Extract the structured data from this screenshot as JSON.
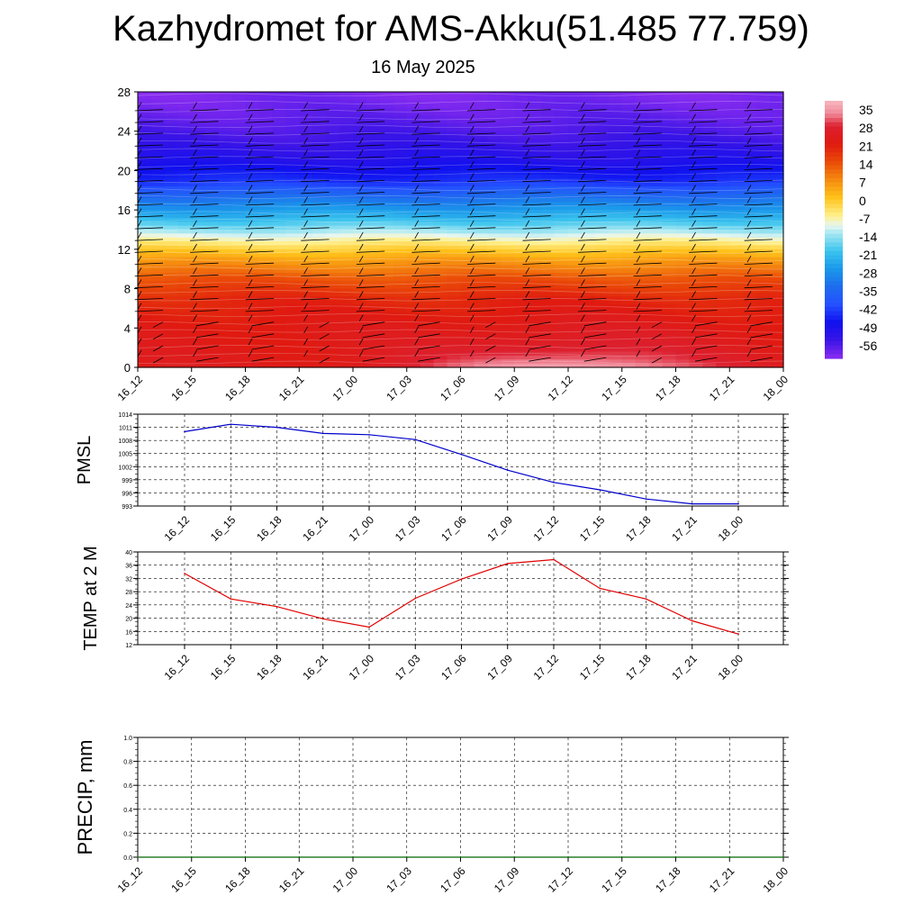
{
  "title": "Kazhydromet for AMS-Akku(51.485 77.759)",
  "subtitle": "16 May 2025",
  "colors": {
    "pmsl_line": "#0000cc",
    "temp_line": "#e00000",
    "precip_line": "#006400",
    "grid": "#000000",
    "barb": "#000000"
  },
  "chart_data": [
    {
      "type": "heatmap",
      "panel": "vertical-profile",
      "x": [
        "16_12",
        "16_15",
        "16_18",
        "16_21",
        "17_00",
        "17_03",
        "17_06",
        "17_09",
        "17_12",
        "17_15",
        "17_18",
        "17_21",
        "18_00"
      ],
      "y_ticks": [
        0,
        4,
        8,
        12,
        16,
        20,
        24,
        28
      ],
      "ylim": [
        0,
        28
      ],
      "colorbar_labels": [
        "35",
        "28",
        "21",
        "14",
        "7",
        "0",
        "-7",
        "-14",
        "-21",
        "-28",
        "-35",
        "-42",
        "-49",
        "-56"
      ],
      "colorbar_stops": [
        {
          "value": 38,
          "color": "#f7b8c0"
        },
        {
          "value": 33,
          "color": "#f08a9a"
        },
        {
          "value": 28,
          "color": "#dc2030"
        },
        {
          "value": 21,
          "color": "#e01a10"
        },
        {
          "value": 14,
          "color": "#ea4a08"
        },
        {
          "value": 7,
          "color": "#f58a10"
        },
        {
          "value": 0,
          "color": "#ffc21a"
        },
        {
          "value": -7,
          "color": "#fff08a"
        },
        {
          "value": -11,
          "color": "#e8f6f0"
        },
        {
          "value": -14,
          "color": "#a6e8f2"
        },
        {
          "value": -21,
          "color": "#3cc4ee"
        },
        {
          "value": -28,
          "color": "#1a98ea"
        },
        {
          "value": -35,
          "color": "#1e6cee"
        },
        {
          "value": -42,
          "color": "#2450ff"
        },
        {
          "value": -49,
          "color": "#1010ee"
        },
        {
          "value": -56,
          "color": "#3a14e6"
        },
        {
          "value": -63,
          "color": "#8a2cf0"
        }
      ],
      "profile": [
        {
          "level": 0,
          "value": 23
        },
        {
          "level": 4,
          "value": 22
        },
        {
          "level": 7,
          "value": 19
        },
        {
          "level": 9,
          "value": 13
        },
        {
          "level": 11,
          "value": 4
        },
        {
          "level": 12.5,
          "value": -5
        },
        {
          "level": 13.5,
          "value": -12
        },
        {
          "level": 15,
          "value": -22
        },
        {
          "level": 17,
          "value": -33
        },
        {
          "level": 19,
          "value": -46
        },
        {
          "level": 21,
          "value": -52
        },
        {
          "level": 23,
          "value": -56
        },
        {
          "level": 25,
          "value": -59
        },
        {
          "level": 28,
          "value": -62
        }
      ],
      "surface_warm_peak_time": "17_12",
      "surface_warm_peak_value": 37
    },
    {
      "type": "line",
      "panel": "pmsl",
      "ylabel": "PMSL",
      "x": [
        "16_12",
        "16_15",
        "16_18",
        "16_21",
        "17_00",
        "17_03",
        "17_06",
        "17_09",
        "17_12",
        "17_15",
        "17_18",
        "17_21",
        "18_00"
      ],
      "series": [
        {
          "values": [
            1010.0,
            1011.7,
            1011.0,
            1009.6,
            1009.3,
            1008.2,
            1004.8,
            1001.2,
            998.4,
            996.7,
            994.6,
            993.5,
            993.5
          ]
        }
      ],
      "ylim": [
        993,
        1014
      ],
      "y_ticks": [
        993,
        996,
        999,
        1002,
        1005,
        1008,
        1011,
        1014
      ],
      "grid": true
    },
    {
      "type": "line",
      "panel": "temp2m",
      "ylabel": "TEMP at 2 M",
      "x": [
        "16_12",
        "16_15",
        "16_18",
        "16_21",
        "17_00",
        "17_03",
        "17_06",
        "17_09",
        "17_12",
        "17_15",
        "17_18",
        "17_21",
        "18_00"
      ],
      "series": [
        {
          "values": [
            33.5,
            25.8,
            23.5,
            19.8,
            17.3,
            26.0,
            31.8,
            36.5,
            37.7,
            29.0,
            25.8,
            19.2,
            15.2
          ]
        }
      ],
      "ylim": [
        12,
        40
      ],
      "y_ticks": [
        12,
        16,
        20,
        24,
        28,
        32,
        36,
        40
      ],
      "grid": true
    },
    {
      "type": "line",
      "panel": "precip",
      "ylabel": "PRECIP, mm",
      "x": [
        "16_12",
        "16_15",
        "16_18",
        "16_21",
        "17_00",
        "17_03",
        "17_06",
        "17_09",
        "17_12",
        "17_15",
        "17_18",
        "17_21",
        "18_00"
      ],
      "series": [
        {
          "values": [
            0,
            0,
            0,
            0,
            0,
            0,
            0,
            0,
            0,
            0,
            0,
            0,
            0
          ]
        }
      ],
      "ylim": [
        0,
        1
      ],
      "y_ticks": [
        "0.0",
        "0.2",
        "0.4",
        "0.6",
        "0.8",
        "1.0"
      ],
      "grid": true
    }
  ]
}
